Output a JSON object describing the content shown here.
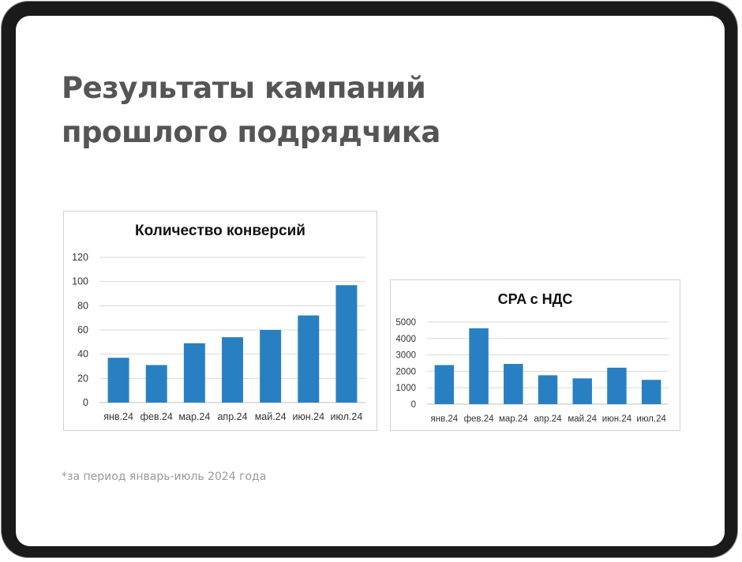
{
  "title": "Результаты кампаний прошлого подрядчика",
  "footnote": "*за период январь-июль 2024 года",
  "colors": {
    "bar": "#2880c2",
    "grid": "#d9d9d9",
    "title": "#555555"
  },
  "chart_data": [
    {
      "type": "bar",
      "title": "Количество конверсий",
      "categories": [
        "янв.24",
        "фев.24",
        "мар.24",
        "апр.24",
        "май.24",
        "июн.24",
        "июл.24"
      ],
      "values": [
        37,
        31,
        49,
        54,
        60,
        72,
        97
      ],
      "ylim": [
        0,
        120
      ],
      "yticks": [
        "0",
        "20",
        "40",
        "60",
        "80",
        "100",
        "120"
      ],
      "grid": true,
      "xlabel": "",
      "ylabel": ""
    },
    {
      "type": "bar",
      "title": "CPA с НДС",
      "categories": [
        "янв.24",
        "фев.24",
        "мар.24",
        "апр.24",
        "май.24",
        "июн.24",
        "июл.24"
      ],
      "values": [
        2380,
        4620,
        2450,
        1760,
        1570,
        2220,
        1480
      ],
      "ylim": [
        0,
        5000
      ],
      "yticks": [
        "0",
        "1000",
        "2000",
        "3000",
        "4000",
        "5000"
      ],
      "grid": true,
      "xlabel": "",
      "ylabel": ""
    }
  ]
}
